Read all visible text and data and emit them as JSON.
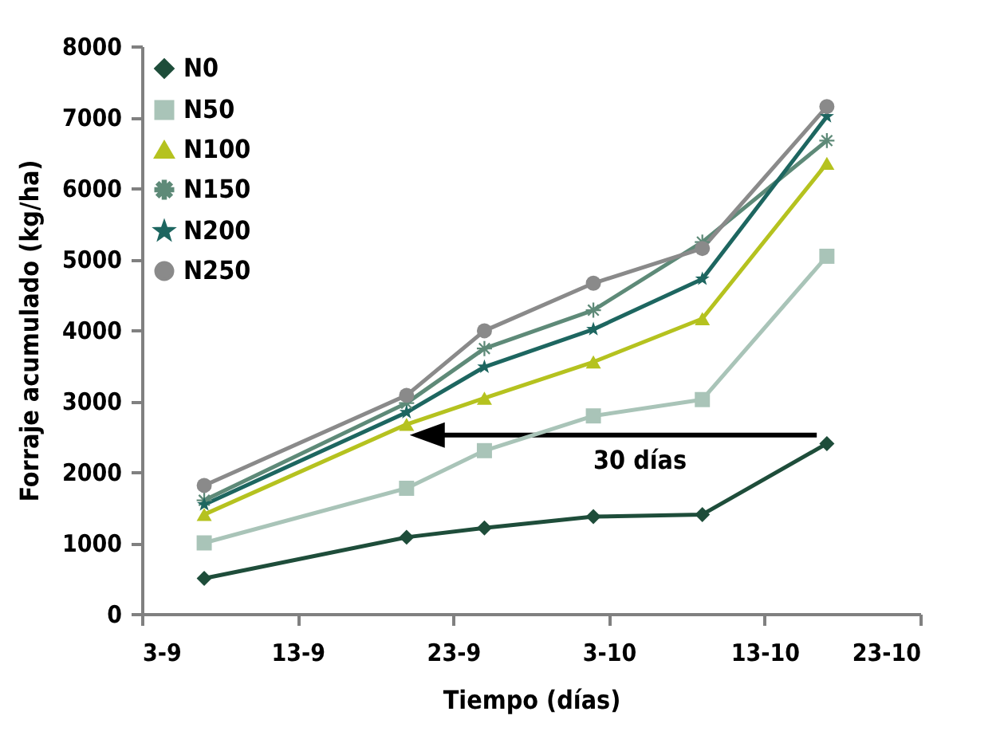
{
  "chart_data": {
    "type": "line",
    "xlabel": "Tiempo (días)",
    "ylabel": "Forraje acumulado (kg/ha)",
    "x": [
      "--09-07",
      "--09-20",
      "--09-25",
      "--10-02",
      "--10-09",
      "--10-17"
    ],
    "series": [
      {
        "name": "N0",
        "color": "#1e4d3a",
        "marker": "diamond",
        "values": [
          500,
          1080,
          1210,
          1370,
          1400,
          2400
        ]
      },
      {
        "name": "N50",
        "color": "#a9c4b8",
        "marker": "square",
        "values": [
          1000,
          1770,
          2300,
          2790,
          3020,
          5040
        ]
      },
      {
        "name": "N100",
        "color": "#b5c21f",
        "marker": "triangle",
        "values": [
          1400,
          2670,
          3040,
          3550,
          4160,
          6350
        ]
      },
      {
        "name": "N150",
        "color": "#5e8a78",
        "marker": "cross",
        "values": [
          1600,
          2970,
          3740,
          4280,
          5240,
          6670
        ]
      },
      {
        "name": "N200",
        "color": "#1d6660",
        "marker": "star",
        "values": [
          1540,
          2840,
          3480,
          4010,
          4720,
          7010
        ]
      },
      {
        "name": "N250",
        "color": "#8a8a8a",
        "marker": "circle",
        "values": [
          1810,
          3080,
          3990,
          4660,
          5150,
          7150
        ]
      }
    ],
    "xlim": [
      "--09-03",
      "--10-23"
    ],
    "xticks": [
      {
        "value": "--09-03",
        "label": "3-9"
      },
      {
        "value": "--09-13",
        "label": "13-9"
      },
      {
        "value": "--09-23",
        "label": "23-9"
      },
      {
        "value": "--10-03",
        "label": "3-10"
      },
      {
        "value": "--10-13",
        "label": "13-10"
      },
      {
        "value": "--10-23",
        "label": "23-10"
      }
    ],
    "ylim": [
      0,
      8000
    ],
    "yticks": [
      0,
      1000,
      2000,
      3000,
      4000,
      5000,
      6000,
      7000,
      8000
    ],
    "annotations": [
      "30 días"
    ],
    "grid": false,
    "legend": "top left"
  }
}
